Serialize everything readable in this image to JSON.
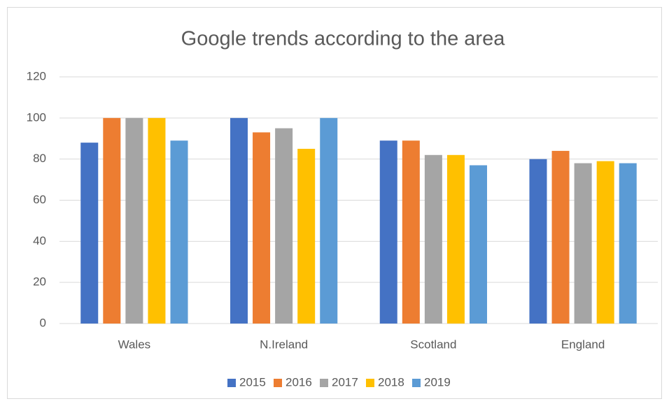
{
  "chart_data": {
    "type": "bar",
    "title": "Google trends according to the area",
    "categories": [
      "Wales",
      "N.Ireland",
      "Scotland",
      "England"
    ],
    "series": [
      {
        "name": "2015",
        "color": "#4472c4",
        "values": [
          88,
          100,
          89,
          80
        ]
      },
      {
        "name": "2016",
        "color": "#ed7d31",
        "values": [
          100,
          93,
          89,
          84
        ]
      },
      {
        "name": "2017",
        "color": "#a5a5a5",
        "values": [
          100,
          95,
          82,
          78
        ]
      },
      {
        "name": "2018",
        "color": "#ffc000",
        "values": [
          100,
          85,
          82,
          79
        ]
      },
      {
        "name": "2019",
        "color": "#5b9bd5",
        "values": [
          89,
          100,
          77,
          78
        ]
      }
    ],
    "ylim": [
      0,
      120
    ],
    "yticks": [
      0,
      20,
      40,
      60,
      80,
      100,
      120
    ],
    "grid": true,
    "legend": "bottom"
  }
}
